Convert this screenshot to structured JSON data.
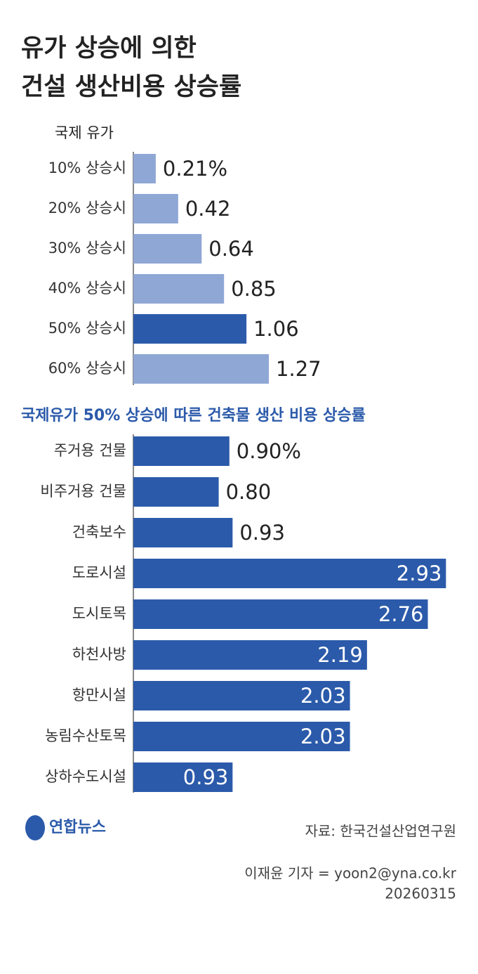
{
  "header": {
    "title_lines": [
      "유가 상승에 의한",
      "건설 생산비용 상승률"
    ]
  },
  "chart_data": [
    {
      "type": "bar",
      "orientation": "horizontal",
      "axis_label": "국제 유가",
      "categories": [
        "10% 상승시",
        "20% 상승시",
        "30% 상승시",
        "40% 상승시",
        "50% 상승시",
        "60% 상승시"
      ],
      "values": [
        0.21,
        0.42,
        0.64,
        0.85,
        1.06,
        1.27
      ],
      "value_labels": [
        "0.21%",
        "0.42",
        "0.64",
        "0.85",
        "1.06",
        "1.27"
      ],
      "colors": [
        "#8fa7d5",
        "#8fa7d5",
        "#8fa7d5",
        "#8fa7d5",
        "#2b5aaa",
        "#8fa7d5"
      ],
      "label_positions": [
        "outside",
        "outside",
        "outside",
        "outside",
        "outside",
        "outside"
      ]
    },
    {
      "type": "bar",
      "orientation": "horizontal",
      "title": "국제유가 50% 상승에 따른 건축물 생산 비용 상승률",
      "categories": [
        "주거용 건물",
        "비주거용 건물",
        "건축보수",
        "도로시설",
        "도시토목",
        "하천사방",
        "항만시설",
        "농림수산토목",
        "상하수도시설"
      ],
      "values": [
        0.9,
        0.8,
        0.93,
        2.93,
        2.76,
        2.19,
        2.03,
        2.03,
        0.93
      ],
      "value_labels": [
        "0.90%",
        "0.80",
        "0.93",
        "2.93",
        "2.76",
        "2.19",
        "2.03",
        "2.03",
        "0.93"
      ],
      "colors": [
        "#2b5aaa",
        "#2b5aaa",
        "#2b5aaa",
        "#2b5aaa",
        "#2b5aaa",
        "#2b5aaa",
        "#2b5aaa",
        "#2b5aaa",
        "#2b5aaa"
      ],
      "label_positions": [
        "outside",
        "outside",
        "outside",
        "inside",
        "inside",
        "inside",
        "inside",
        "inside",
        "inside"
      ]
    }
  ],
  "footer": {
    "logo": "연합뉴스",
    "source": "자료: 한국건설산업연구원",
    "credit": "이재윤 기자 = yoon2@yna.co.kr",
    "date": "20260315"
  }
}
